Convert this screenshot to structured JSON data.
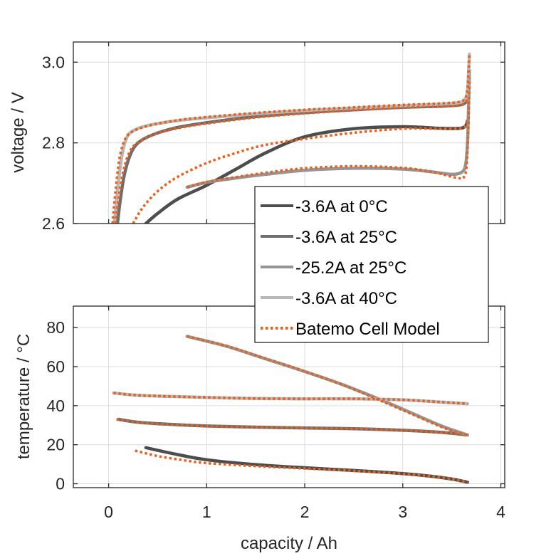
{
  "chart_data": [
    {
      "type": "line",
      "name": "voltage-plot",
      "title": "",
      "xlabel": "",
      "ylabel": "voltage / V",
      "xlim": [
        -0.36,
        4.04
      ],
      "ylim": [
        2.6,
        3.05
      ],
      "yticks": [
        2.6,
        2.8,
        3.0
      ],
      "ytick_labels": [
        "2.6",
        "2.8",
        "3.0"
      ],
      "xticks": [
        0,
        1,
        2,
        3,
        4
      ],
      "grid": true,
      "series": [
        {
          "name": "-3.6A at 0°C",
          "style": "measured",
          "color": "#4d4d4d",
          "x": [
            0.38,
            0.5,
            0.7,
            1.0,
            1.3,
            1.6,
            2.0,
            2.5,
            3.0,
            3.4,
            3.58,
            3.64,
            3.66
          ],
          "y": [
            2.6,
            2.625,
            2.66,
            2.695,
            2.735,
            2.775,
            2.815,
            2.835,
            2.84,
            2.836,
            2.836,
            2.842,
            2.855
          ]
        },
        {
          "name": "-3.6A at 25°C",
          "style": "measured",
          "color": "#6e6e6e",
          "x": [
            0.09,
            0.12,
            0.16,
            0.22,
            0.3,
            0.45,
            0.7,
            1.0,
            1.5,
            2.0,
            2.5,
            3.0,
            3.4,
            3.58,
            3.64,
            3.66
          ],
          "y": [
            2.6,
            2.66,
            2.72,
            2.77,
            2.8,
            2.82,
            2.838,
            2.85,
            2.865,
            2.875,
            2.882,
            2.888,
            2.891,
            2.894,
            2.9,
            2.91
          ]
        },
        {
          "name": "-25.2A at 25°C",
          "style": "measured",
          "color": "#959595",
          "x": [
            0.8,
            1.0,
            1.3,
            1.6,
            2.0,
            2.5,
            3.0,
            3.3,
            3.5,
            3.6,
            3.64,
            3.66,
            3.67,
            3.68
          ],
          "y": [
            2.69,
            2.702,
            2.713,
            2.722,
            2.732,
            2.737,
            2.735,
            2.728,
            2.722,
            2.727,
            2.745,
            2.8,
            2.88,
            2.98
          ]
        },
        {
          "name": "-3.6A at 40°C",
          "style": "measured",
          "color": "#b8b8b8",
          "x": [
            0.06,
            0.09,
            0.13,
            0.18,
            0.25,
            0.4,
            0.7,
            1.0,
            1.5,
            2.0,
            2.5,
            3.0,
            3.4,
            3.58,
            3.64,
            3.66,
            3.67,
            3.68
          ],
          "y": [
            2.6,
            2.68,
            2.76,
            2.81,
            2.83,
            2.843,
            2.855,
            2.862,
            2.872,
            2.88,
            2.886,
            2.892,
            2.896,
            2.9,
            2.91,
            2.93,
            2.97,
            3.02
          ]
        },
        {
          "name": "Batemo Cell Model",
          "style": "model",
          "color": "#e8601c",
          "segments": [
            {
              "x": [
                0.25,
                0.35,
                0.5,
                0.7,
                1.0,
                1.3,
                1.6,
                2.0,
                2.5,
                3.0,
                3.4,
                3.58,
                3.64,
                3.66
              ],
              "y": [
                2.6,
                2.64,
                2.68,
                2.715,
                2.75,
                2.775,
                2.795,
                2.81,
                2.825,
                2.835,
                2.835,
                2.836,
                2.842,
                2.855
              ]
            },
            {
              "x": [
                0.07,
                0.1,
                0.14,
                0.2,
                0.28,
                0.45,
                0.7,
                1.0,
                1.5,
                2.0,
                2.5,
                3.0,
                3.4,
                3.58,
                3.64,
                3.66
              ],
              "y": [
                2.6,
                2.66,
                2.72,
                2.77,
                2.798,
                2.82,
                2.836,
                2.848,
                2.863,
                2.873,
                2.881,
                2.887,
                2.89,
                2.893,
                2.9,
                2.91
              ]
            },
            {
              "x": [
                0.8,
                1.0,
                1.3,
                1.6,
                2.0,
                2.5,
                3.0,
                3.3,
                3.5,
                3.58,
                3.62,
                3.65,
                3.67,
                3.68
              ],
              "y": [
                2.69,
                2.703,
                2.715,
                2.726,
                2.737,
                2.742,
                2.738,
                2.728,
                2.716,
                2.712,
                2.714,
                2.74,
                2.85,
                2.96
              ]
            },
            {
              "x": [
                0.04,
                0.07,
                0.11,
                0.16,
                0.23,
                0.4,
                0.7,
                1.0,
                1.5,
                2.0,
                2.5,
                3.0,
                3.4,
                3.58,
                3.64,
                3.66,
                3.67,
                3.68
              ],
              "y": [
                2.6,
                2.68,
                2.76,
                2.805,
                2.826,
                2.842,
                2.856,
                2.864,
                2.874,
                2.882,
                2.888,
                2.894,
                2.898,
                2.902,
                2.912,
                2.935,
                2.97,
                3.02
              ]
            }
          ]
        }
      ]
    },
    {
      "type": "line",
      "name": "temperature-plot",
      "title": "",
      "xlabel": "capacity / Ah",
      "ylabel": "temperature / °C",
      "xlim": [
        -0.36,
        4.04
      ],
      "ylim": [
        -2,
        91
      ],
      "yticks": [
        0,
        20,
        40,
        60,
        80
      ],
      "ytick_labels": [
        "0",
        "20",
        "40",
        "60",
        "80"
      ],
      "xticks": [
        0,
        1,
        2,
        3,
        4
      ],
      "xtick_labels": [
        "0",
        "1",
        "2",
        "3",
        "4"
      ],
      "grid": true,
      "series": [
        {
          "name": "-3.6A at 0°C",
          "style": "measured",
          "color": "#4d4d4d",
          "x": [
            0.38,
            0.7,
            1.0,
            1.5,
            2.0,
            2.5,
            3.0,
            3.3,
            3.5,
            3.66
          ],
          "y": [
            18.5,
            15,
            12.3,
            9.8,
            8.2,
            6.8,
            5.2,
            3.8,
            2.4,
            0.8
          ]
        },
        {
          "name": "-3.6A at 25°C",
          "style": "measured",
          "color": "#6e6e6e",
          "x": [
            0.1,
            0.3,
            0.6,
            1.0,
            1.5,
            2.0,
            2.5,
            3.0,
            3.4,
            3.66
          ],
          "y": [
            33,
            31.5,
            30.5,
            29.6,
            29,
            28.6,
            28.2,
            27.4,
            26.3,
            25
          ]
        },
        {
          "name": "-25.2A at 25°C",
          "style": "measured",
          "color": "#959595",
          "x": [
            0.8,
            1.2,
            1.6,
            2.0,
            2.4,
            2.8,
            3.1,
            3.4,
            3.6,
            3.66
          ],
          "y": [
            75.5,
            70.5,
            64,
            57.5,
            50.5,
            42.5,
            36,
            29.5,
            26,
            25
          ]
        },
        {
          "name": "-3.6A at 40°C",
          "style": "measured",
          "color": "#b8b8b8",
          "x": [
            0.05,
            0.3,
            0.6,
            1.0,
            1.5,
            2.0,
            2.5,
            3.0,
            3.4,
            3.66
          ],
          "y": [
            46.5,
            45.3,
            44.8,
            44.2,
            43.7,
            43.5,
            43.5,
            43,
            41.8,
            41
          ]
        },
        {
          "name": "Batemo Cell Model",
          "style": "model",
          "color": "#e8601c",
          "segments": [
            {
              "x": [
                0.27,
                0.5,
                0.8,
                1.0,
                1.5,
                2.0,
                2.5,
                3.0,
                3.3,
                3.5,
                3.66
              ],
              "y": [
                17,
                14.2,
                11.8,
                10.6,
                9,
                7.8,
                6.6,
                5.1,
                3.8,
                2.4,
                0.8
              ]
            },
            {
              "x": [
                0.08,
                0.3,
                0.6,
                1.0,
                1.5,
                2.0,
                2.5,
                3.0,
                3.4,
                3.66
              ],
              "y": [
                33,
                31.4,
                30.4,
                29.5,
                29,
                28.6,
                28.2,
                27.4,
                26.3,
                25
              ]
            },
            {
              "x": [
                0.8,
                1.2,
                1.6,
                2.0,
                2.4,
                2.8,
                3.1,
                3.4,
                3.6,
                3.66
              ],
              "y": [
                75.5,
                70.6,
                64.2,
                57.6,
                50.4,
                42,
                35.5,
                29,
                25.6,
                24.8
              ]
            },
            {
              "x": [
                0.05,
                0.3,
                0.6,
                1.0,
                1.5,
                2.0,
                2.5,
                3.0,
                3.4,
                3.66
              ],
              "y": [
                46.5,
                45.3,
                44.8,
                44.2,
                43.7,
                43.5,
                43.5,
                43,
                41.8,
                41
              ]
            }
          ]
        }
      ]
    }
  ],
  "legend": {
    "placement": "overlapping-between-plots-right",
    "entries": [
      {
        "label": "-3.6A at 0°C",
        "color": "#4d4d4d",
        "style": "solid"
      },
      {
        "label": "-3.6A at 25°C",
        "color": "#6e6e6e",
        "style": "solid"
      },
      {
        "label": "-25.2A at 25°C",
        "color": "#959595",
        "style": "solid"
      },
      {
        "label": "-3.6A at 40°C",
        "color": "#b8b8b8",
        "style": "solid"
      },
      {
        "label": "Batemo Cell Model",
        "color": "#e8601c",
        "style": "dotted"
      }
    ]
  }
}
